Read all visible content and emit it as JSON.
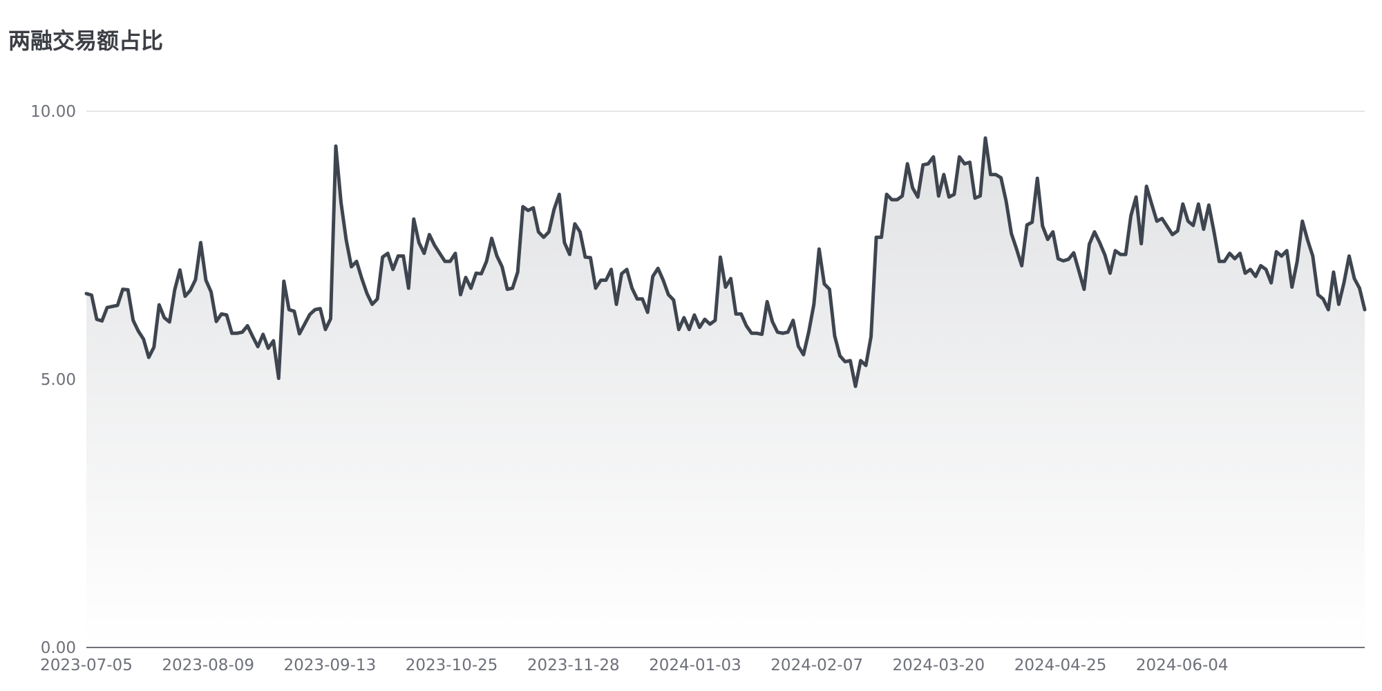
{
  "chart_data": {
    "type": "area",
    "title": "两融交易额占比",
    "xlabel": "",
    "ylabel": "",
    "ylim": [
      0,
      10
    ],
    "y_ticks": [
      "0.00",
      "5.00",
      "10.00"
    ],
    "x_tick_labels": [
      "2023-07-05",
      "2023-08-09",
      "2023-09-13",
      "2023-10-25",
      "2023-11-28",
      "2024-01-03",
      "2024-02-07",
      "2024-03-20",
      "2024-04-25",
      "2024-06-04"
    ],
    "grid": true,
    "series_color": "#3e454f",
    "fill_gradient": [
      "#e1e2e4",
      "#ffffff"
    ],
    "values": [
      6.6,
      6.57,
      6.12,
      6.09,
      6.34,
      6.36,
      6.38,
      6.68,
      6.67,
      6.1,
      5.9,
      5.75,
      5.41,
      5.6,
      6.39,
      6.15,
      6.07,
      6.67,
      7.04,
      6.55,
      6.66,
      6.86,
      7.55,
      6.85,
      6.63,
      6.08,
      6.22,
      6.2,
      5.86,
      5.86,
      5.88,
      6.0,
      5.8,
      5.61,
      5.84,
      5.58,
      5.72,
      5.02,
      6.83,
      6.3,
      6.27,
      5.85,
      6.03,
      6.21,
      6.3,
      6.32,
      5.93,
      6.13,
      9.35,
      8.3,
      7.6,
      7.1,
      7.2,
      6.88,
      6.6,
      6.4,
      6.5,
      7.28,
      7.35,
      7.05,
      7.3,
      7.3,
      6.7,
      7.99,
      7.55,
      7.35,
      7.7,
      7.5,
      7.35,
      7.2,
      7.2,
      7.35,
      6.58,
      6.9,
      6.7,
      6.98,
      6.97,
      7.2,
      7.63,
      7.3,
      7.1,
      6.68,
      6.7,
      7.0,
      8.22,
      8.15,
      8.2,
      7.75,
      7.65,
      7.75,
      8.17,
      8.45,
      7.55,
      7.33,
      7.9,
      7.75,
      7.28,
      7.27,
      6.7,
      6.85,
      6.85,
      7.05,
      6.4,
      6.97,
      7.05,
      6.7,
      6.5,
      6.5,
      6.25,
      6.92,
      7.07,
      6.85,
      6.58,
      6.48,
      5.93,
      6.15,
      5.93,
      6.2,
      5.97,
      6.12,
      6.03,
      6.1,
      7.28,
      6.72,
      6.88,
      6.22,
      6.22,
      6.0,
      5.86,
      5.86,
      5.84,
      6.45,
      6.08,
      5.88,
      5.86,
      5.88,
      6.1,
      5.62,
      5.46,
      5.88,
      6.4,
      7.43,
      6.78,
      6.68,
      5.81,
      5.44,
      5.33,
      5.35,
      4.87,
      5.35,
      5.26,
      5.8,
      7.65,
      7.65,
      8.45,
      8.35,
      8.35,
      8.42,
      9.02,
      8.57,
      8.4,
      9.0,
      9.02,
      9.15,
      8.42,
      8.82,
      8.4,
      8.45,
      9.15,
      9.02,
      9.05,
      8.38,
      8.42,
      9.5,
      8.82,
      8.82,
      8.76,
      8.32,
      7.72,
      7.43,
      7.12,
      7.88,
      7.93,
      8.75,
      7.86,
      7.61,
      7.75,
      7.25,
      7.21,
      7.24,
      7.36,
      7.02,
      6.68,
      7.52,
      7.75,
      7.55,
      7.32,
      6.98,
      7.4,
      7.33,
      7.33,
      8.05,
      8.4,
      7.53,
      8.6,
      8.27,
      7.95,
      8.0,
      7.85,
      7.7,
      7.77,
      8.27,
      7.95,
      7.87,
      8.27,
      7.8,
      8.25,
      7.75,
      7.2,
      7.2,
      7.35,
      7.25,
      7.35,
      6.98,
      7.05,
      6.92,
      7.12,
      7.05,
      6.8,
      7.38,
      7.3,
      7.4,
      6.72,
      7.2,
      7.95,
      7.6,
      7.3,
      6.58,
      6.5,
      6.3,
      7.0,
      6.4,
      6.8,
      7.3,
      6.88,
      6.7,
      6.3
    ]
  }
}
